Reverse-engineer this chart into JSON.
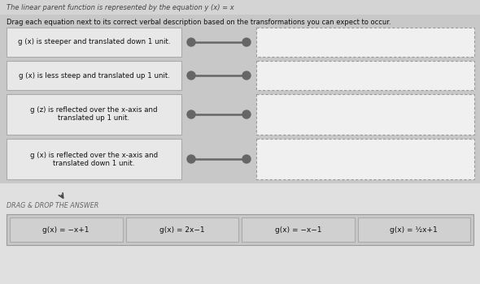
{
  "title_line1": "The linear parent function is represented by the equation y (x) = x",
  "instruction": "Drag each equation next to its correct verbal description based on the transformations you can expect to occur.",
  "descriptions": [
    "g (x) is steeper and translated down 1 unit.",
    "g (x) is less steep and translated up 1 unit.",
    "g (z) is reflected over the x-axis and\ntranslated up 1 unit.",
    "g (x) is reflected over the x-axis and\ntranslated down 1 unit."
  ],
  "drag_label": "DRAG & DROP THE ANSWER",
  "equations": [
    "g(x) = −x+1",
    "g(x) = 2x−1",
    "g(x) = −x−1",
    "g(x) = ½x+1"
  ],
  "bg_top": "#d4d4d4",
  "bg_main": "#c8c8c8",
  "bg_bottom": "#dcdcdc",
  "left_box_bg": "#e8e8e8",
  "left_box_border": "#aaaaaa",
  "dashed_box_bg": "#f0f0f0",
  "dashed_box_border": "#999999",
  "connector_color": "#666666",
  "text_color": "#111111",
  "title_color": "#444444",
  "eq_tile_bg": "#d0d0d0",
  "eq_tile_border": "#aaaaaa",
  "eq_area_bg": "#c8c8c8",
  "drag_label_color": "#666666"
}
